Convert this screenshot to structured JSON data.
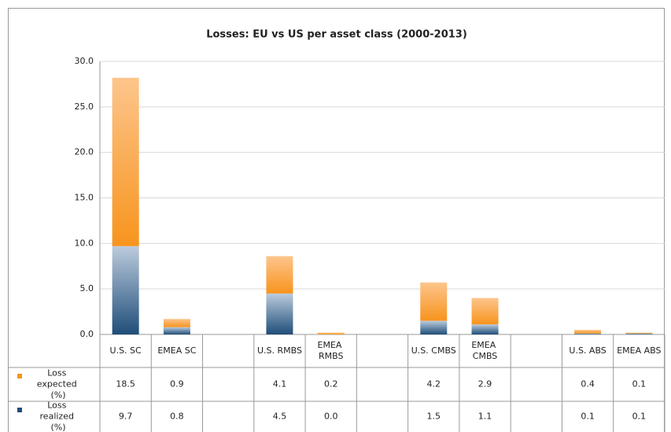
{
  "chart_data": {
    "type": "stacked-bar",
    "title": "Losses: EU vs US per asset class (2000-2013)",
    "categories": [
      "U.S. SC",
      "EMEA SC",
      null,
      "U.S. RMBS",
      "EMEA RMBS",
      null,
      "U.S. CMBS",
      "EMEA CMBS",
      null,
      "U.S. ABS",
      "EMEA ABS"
    ],
    "series": [
      {
        "name": "Loss expected (%)",
        "color": "#f7941d",
        "values": [
          18.5,
          0.9,
          null,
          4.1,
          0.2,
          null,
          4.2,
          2.9,
          null,
          0.4,
          0.1
        ],
        "value_labels": [
          "18.5",
          "0.9",
          null,
          "4.1",
          "0.2",
          null,
          "4.2",
          "2.9",
          null,
          "0.4",
          "0.1"
        ]
      },
      {
        "name": "Loss realized (%)",
        "color": "#1f4e79",
        "values": [
          9.7,
          0.8,
          null,
          4.5,
          0.0,
          null,
          1.5,
          1.1,
          null,
          0.1,
          0.1
        ],
        "value_labels": [
          "9.7",
          "0.8",
          null,
          "4.5",
          "0.0",
          null,
          "1.5",
          "1.1",
          null,
          "0.1",
          "0.1"
        ]
      }
    ],
    "stack_order": [
      1,
      0
    ],
    "ylim": [
      0,
      30
    ],
    "yticks": [
      {
        "value": 0,
        "label": "0.0"
      },
      {
        "value": 5,
        "label": "5.0"
      },
      {
        "value": 10,
        "label": "10.0"
      },
      {
        "value": 15,
        "label": "15.0"
      },
      {
        "value": 20,
        "label": "20.0"
      },
      {
        "value": 25,
        "label": "25.0"
      },
      {
        "value": 30,
        "label": "30.0"
      }
    ],
    "grid": true
  }
}
